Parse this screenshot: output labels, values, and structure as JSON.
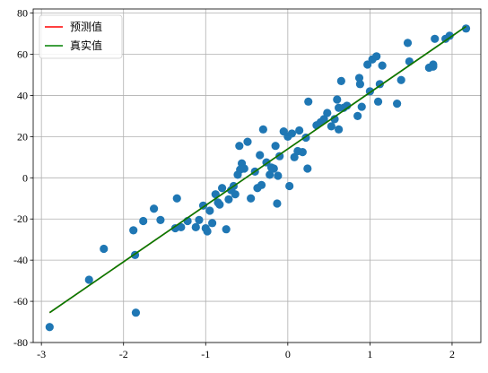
{
  "chart_data": {
    "type": "scatter",
    "title": "",
    "xlabel": "",
    "ylabel": "",
    "xlim": [
      -3.1,
      2.35
    ],
    "ylim": [
      -80,
      82
    ],
    "grid": true,
    "legend_placement": "top-left",
    "x_ticks": [
      -3,
      -2,
      -1,
      0,
      1,
      2
    ],
    "x_tick_labels": [
      "-3",
      "-2",
      "-1",
      "0",
      "1",
      "2"
    ],
    "y_ticks": [
      -80,
      -60,
      -40,
      -20,
      0,
      20,
      40,
      60,
      80
    ],
    "y_tick_labels": [
      "-80",
      "-60",
      "-40",
      "-20",
      "0",
      "20",
      "40",
      "60",
      "80"
    ],
    "series": [
      {
        "name": "",
        "kind": "scatter",
        "color": "#1f77b4",
        "points": [
          [
            -2.9,
            -72.5
          ],
          [
            -2.42,
            -49.5
          ],
          [
            -2.24,
            -34.5
          ],
          [
            -1.86,
            -37.5
          ],
          [
            -1.88,
            -25.5
          ],
          [
            -1.85,
            -65.5
          ],
          [
            -1.76,
            -21.0
          ],
          [
            -1.63,
            -15.0
          ],
          [
            -1.55,
            -20.5
          ],
          [
            -1.35,
            -10.0
          ],
          [
            -1.37,
            -24.5
          ],
          [
            -1.3,
            -24.0
          ],
          [
            -1.22,
            -21.0
          ],
          [
            -1.12,
            -24.0
          ],
          [
            -1.08,
            -20.5
          ],
          [
            -1.03,
            -13.5
          ],
          [
            -1.0,
            -24.5
          ],
          [
            -0.98,
            -26.0
          ],
          [
            -0.95,
            -16.0
          ],
          [
            -0.92,
            -22.0
          ],
          [
            -0.88,
            -8.0
          ],
          [
            -0.85,
            -12.0
          ],
          [
            -0.83,
            -13.0
          ],
          [
            -0.8,
            -5.0
          ],
          [
            -0.75,
            -25.0
          ],
          [
            -0.72,
            -10.5
          ],
          [
            -0.69,
            -6.0
          ],
          [
            -0.66,
            -4.0
          ],
          [
            -0.64,
            -8.0
          ],
          [
            -0.61,
            1.5
          ],
          [
            -0.59,
            15.5
          ],
          [
            -0.58,
            4.0
          ],
          [
            -0.56,
            7.0
          ],
          [
            -0.53,
            4.5
          ],
          [
            -0.49,
            17.5
          ],
          [
            -0.45,
            -10.0
          ],
          [
            -0.4,
            3.0
          ],
          [
            -0.37,
            -5.0
          ],
          [
            -0.34,
            11.0
          ],
          [
            -0.32,
            -3.5
          ],
          [
            -0.3,
            23.5
          ],
          [
            -0.26,
            7.5
          ],
          [
            -0.22,
            1.5
          ],
          [
            -0.2,
            5.0
          ],
          [
            -0.17,
            4.5
          ],
          [
            -0.15,
            15.5
          ],
          [
            -0.13,
            -12.5
          ],
          [
            -0.12,
            1.0
          ],
          [
            -0.1,
            10.5
          ],
          [
            -0.05,
            22.5
          ],
          [
            0.0,
            20.0
          ],
          [
            0.02,
            -4.0
          ],
          [
            0.05,
            21.5
          ],
          [
            0.08,
            10.0
          ],
          [
            0.12,
            13.0
          ],
          [
            0.14,
            23.0
          ],
          [
            0.18,
            12.5
          ],
          [
            0.22,
            19.5
          ],
          [
            0.24,
            4.5
          ],
          [
            0.25,
            37.0
          ],
          [
            0.35,
            25.5
          ],
          [
            0.4,
            27.0
          ],
          [
            0.44,
            28.5
          ],
          [
            0.48,
            31.5
          ],
          [
            0.53,
            25.0
          ],
          [
            0.57,
            28.5
          ],
          [
            0.6,
            38.0
          ],
          [
            0.62,
            23.5
          ],
          [
            0.62,
            34.0
          ],
          [
            0.65,
            47.0
          ],
          [
            0.68,
            34.0
          ],
          [
            0.72,
            35.0
          ],
          [
            0.85,
            30.0
          ],
          [
            0.87,
            48.5
          ],
          [
            0.88,
            45.5
          ],
          [
            0.9,
            34.5
          ],
          [
            0.97,
            55.0
          ],
          [
            1.0,
            42.0
          ],
          [
            1.03,
            57.5
          ],
          [
            1.08,
            59.0
          ],
          [
            1.1,
            37.0
          ],
          [
            1.12,
            45.5
          ],
          [
            1.15,
            54.5
          ],
          [
            1.33,
            36.0
          ],
          [
            1.38,
            47.5
          ],
          [
            1.46,
            65.5
          ],
          [
            1.48,
            56.5
          ],
          [
            1.72,
            53.5
          ],
          [
            1.77,
            55.0
          ],
          [
            1.77,
            54.0
          ],
          [
            1.79,
            67.5
          ],
          [
            1.92,
            67.5
          ],
          [
            1.97,
            69.0
          ],
          [
            2.17,
            72.5
          ]
        ]
      },
      {
        "name": "预测值",
        "kind": "line",
        "color": "#ff0000",
        "points": [
          [
            -2.9,
            -65.5
          ],
          [
            2.17,
            73.5
          ]
        ]
      },
      {
        "name": "真实值",
        "kind": "line",
        "color": "#008000",
        "points": [
          [
            -2.9,
            -65.5
          ],
          [
            2.17,
            73.5
          ]
        ]
      }
    ]
  }
}
